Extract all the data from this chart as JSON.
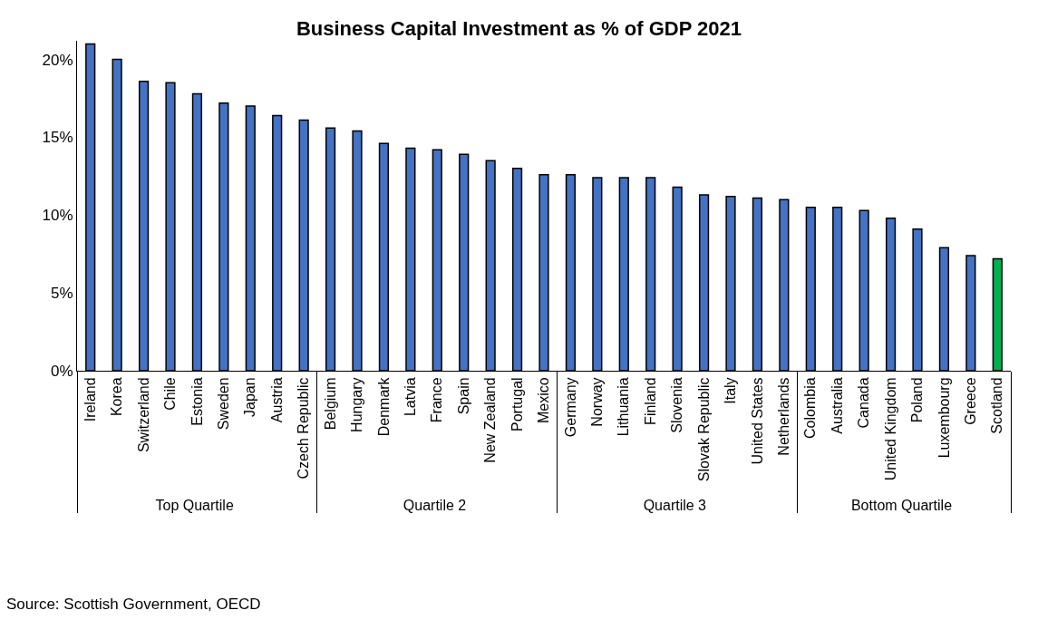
{
  "chart_data": {
    "type": "bar",
    "title": "Business Capital Investment as % of GDP 2021",
    "categories": [
      "Ireland",
      "Korea",
      "Switzerland",
      "Chile",
      "Estonia",
      "Sweden",
      "Japan",
      "Austria",
      "Czech Republic",
      "Belgium",
      "Hungary",
      "Denmark",
      "Latvia",
      "France",
      "Spain",
      "New Zealand",
      "Portugal",
      "Mexico",
      "Germany",
      "Norway",
      "Lithuania",
      "Finland",
      "Slovenia",
      "Slovak Republic",
      "Italy",
      "United States",
      "Netherlands",
      "Colombia",
      "Australia",
      "Canada",
      "United Kingdom",
      "Poland",
      "Luxembourg",
      "Greece",
      "Scotland"
    ],
    "values": [
      21.0,
      20.0,
      18.6,
      18.5,
      17.8,
      17.2,
      17.0,
      16.4,
      16.1,
      15.6,
      15.4,
      14.6,
      14.3,
      14.2,
      13.9,
      13.5,
      13.0,
      12.6,
      12.6,
      12.4,
      12.4,
      12.4,
      11.8,
      11.3,
      11.2,
      11.1,
      11.0,
      10.5,
      10.5,
      10.3,
      9.8,
      9.1,
      7.9,
      7.4,
      7.2
    ],
    "colors": [
      "#4472c4",
      "#4472c4",
      "#4472c4",
      "#4472c4",
      "#4472c4",
      "#4472c4",
      "#4472c4",
      "#4472c4",
      "#4472c4",
      "#4472c4",
      "#4472c4",
      "#4472c4",
      "#4472c4",
      "#4472c4",
      "#4472c4",
      "#4472c4",
      "#4472c4",
      "#4472c4",
      "#4472c4",
      "#4472c4",
      "#4472c4",
      "#4472c4",
      "#4472c4",
      "#4472c4",
      "#4472c4",
      "#4472c4",
      "#4472c4",
      "#4472c4",
      "#4472c4",
      "#4472c4",
      "#4472c4",
      "#4472c4",
      "#4472c4",
      "#4472c4",
      "#00b050"
    ],
    "ylim": [
      0,
      21.2
    ],
    "yticks": [
      {
        "value": 0,
        "label": "0%"
      },
      {
        "value": 5,
        "label": "5%"
      },
      {
        "value": 10,
        "label": "10%"
      },
      {
        "value": 15,
        "label": "15%"
      },
      {
        "value": 20,
        "label": "20%"
      }
    ],
    "annotations": [
      "Top Quartile",
      "Quartile 2",
      "Quartile 3",
      "Bottom Quartile",
      "Source: Scottish Government, OECD"
    ]
  }
}
